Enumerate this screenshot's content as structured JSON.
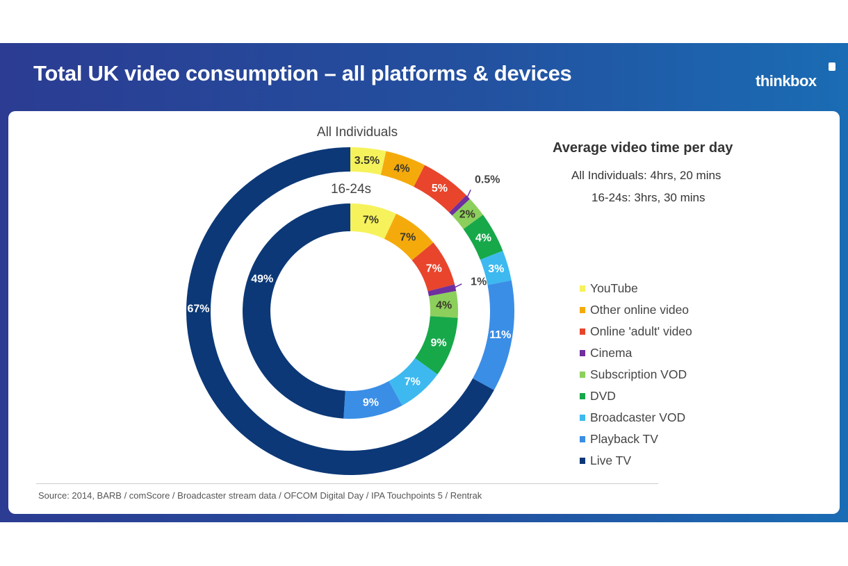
{
  "header": {
    "title": "Total UK video consumption – all platforms & devices",
    "logo": "thinkbox"
  },
  "chart_data": {
    "type": "pie",
    "subtype": "nested-donut",
    "categories": [
      "YouTube",
      "Other online video",
      "Online 'adult' video",
      "Cinema",
      "Subscription VOD",
      "DVD",
      "Broadcaster VOD",
      "Playback TV",
      "Live TV"
    ],
    "colors": [
      "#f6f25c",
      "#f5aa0c",
      "#e8452c",
      "#6f2f9f",
      "#8ccf5c",
      "#17a84a",
      "#3db9f0",
      "#3a8ee6",
      "#0c3877"
    ],
    "series": [
      {
        "name": "All Individuals",
        "values": [
          3.5,
          4,
          5,
          0.5,
          2,
          4,
          3,
          11,
          67
        ],
        "labels": [
          "3.5%",
          "4%",
          "5%",
          "0.5%",
          "2%",
          "4%",
          "3%",
          "11%",
          "67%"
        ]
      },
      {
        "name": "16-24s",
        "values": [
          7,
          7,
          7,
          1,
          4,
          9,
          7,
          9,
          49
        ],
        "labels": [
          "7%",
          "7%",
          "7%",
          "1%",
          "4%",
          "9%",
          "7%",
          "9%",
          "49%"
        ]
      }
    ],
    "legend_position": "right"
  },
  "summary": {
    "title": "Average video time per day",
    "lines": [
      "All Individuals: 4hrs, 20 mins",
      "16-24s: 3hrs, 30 mins"
    ]
  },
  "footer": {
    "source": "Source: 2014, BARB / comScore / Broadcaster stream data / OFCOM Digital Day / IPA Touchpoints  5 / Rentrak"
  }
}
